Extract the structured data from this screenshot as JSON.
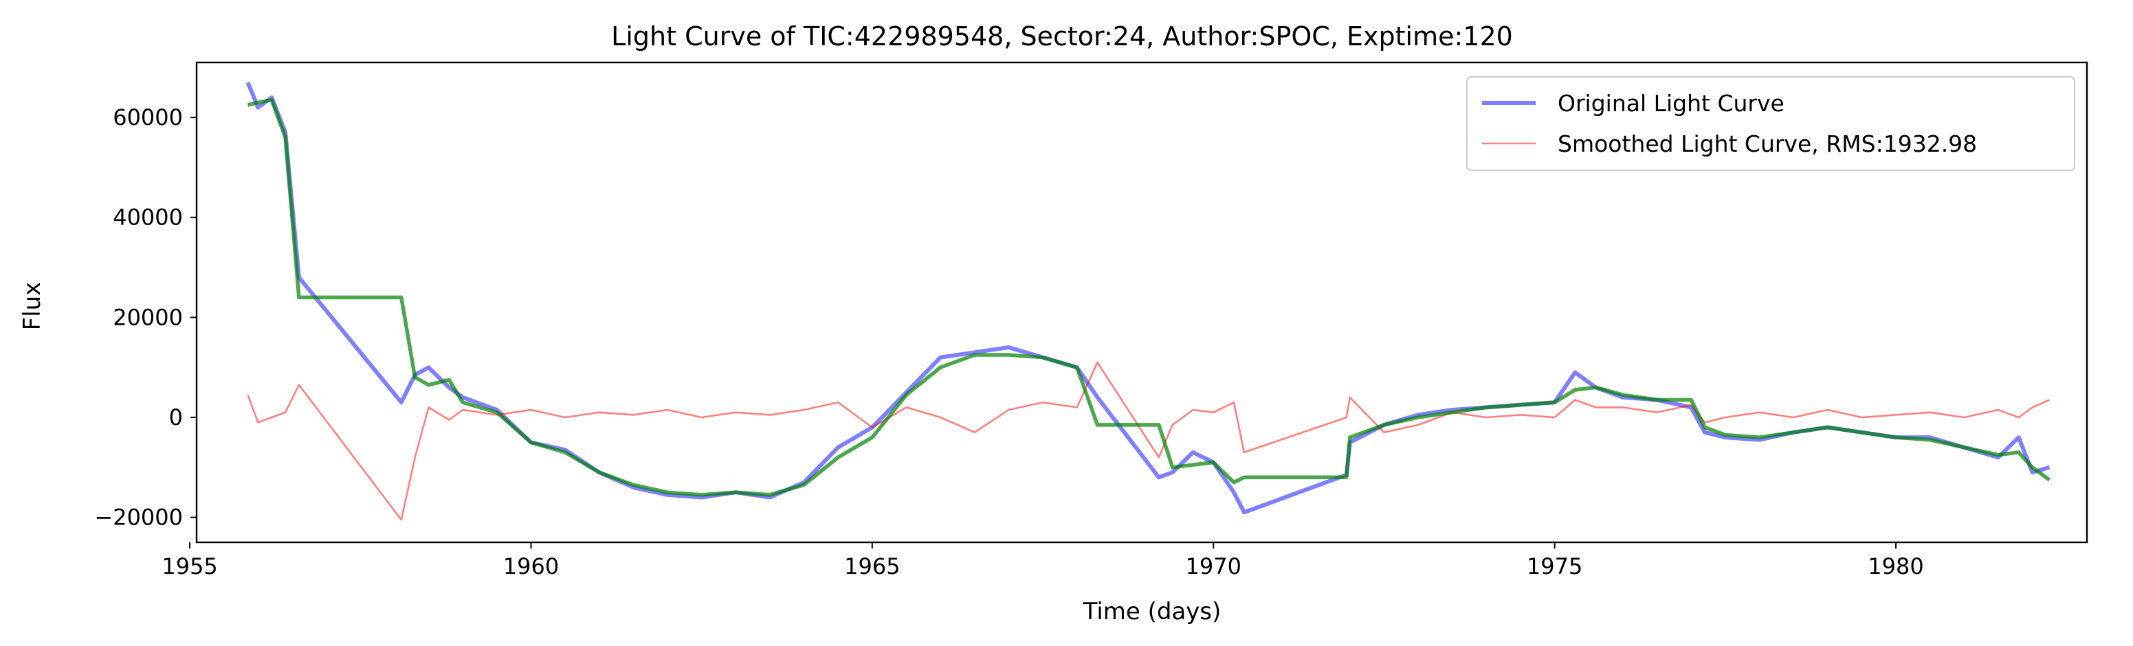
{
  "chart_data": {
    "type": "line",
    "title": "Light Curve of TIC:422989548, Sector:24, Author:SPOC, Exptime:120",
    "xlabel": "Time (days)",
    "ylabel": "Flux",
    "xlim": [
      1955.1,
      1982.8
    ],
    "ylim": [
      -25000,
      71000
    ],
    "xticks": [
      1955,
      1960,
      1965,
      1970,
      1975,
      1980
    ],
    "yticks": [
      -20000,
      0,
      20000,
      40000,
      60000
    ],
    "ytick_labels": [
      "−20000",
      "0",
      "20000",
      "40000",
      "60000"
    ],
    "grid": false,
    "legend_position": "top-right",
    "series": [
      {
        "name": "Original Light Curve",
        "color": "#0000ff",
        "opacity": 0.5,
        "x": [
          1955.85,
          1956.0,
          1956.2,
          1956.4,
          1956.6,
          1958.1,
          1958.3,
          1958.5,
          1958.8,
          1959.0,
          1959.5,
          1960.0,
          1960.5,
          1961.0,
          1961.5,
          1962.0,
          1962.5,
          1963.0,
          1963.5,
          1964.0,
          1964.5,
          1965.0,
          1965.5,
          1966.0,
          1966.5,
          1967.0,
          1967.5,
          1968.0,
          1968.3,
          1969.2,
          1969.4,
          1969.7,
          1970.0,
          1970.3,
          1970.45,
          1971.95,
          1972.0,
          1972.5,
          1973.0,
          1973.5,
          1974.0,
          1974.5,
          1975.0,
          1975.3,
          1975.6,
          1976.0,
          1976.5,
          1977.0,
          1977.2,
          1977.5,
          1978.0,
          1978.5,
          1979.0,
          1979.5,
          1980.0,
          1980.5,
          1981.0,
          1981.5,
          1981.8,
          1982.0,
          1982.25
        ],
        "y": [
          67000,
          62000,
          64000,
          57000,
          28000,
          3000,
          8500,
          10000,
          6000,
          4000,
          1500,
          -5000,
          -6500,
          -11000,
          -14000,
          -15500,
          -16000,
          -15000,
          -16000,
          -13000,
          -6000,
          -2000,
          5000,
          12000,
          13000,
          14000,
          12000,
          10000,
          4000,
          -12000,
          -11000,
          -7000,
          -9000,
          -15000,
          -19000,
          -11500,
          -5000,
          -1500,
          500,
          1500,
          2000,
          2500,
          3000,
          9000,
          6000,
          4000,
          3500,
          2000,
          -3000,
          -4000,
          -4500,
          -3000,
          -2000,
          -3000,
          -4000,
          -4000,
          -6000,
          -8000,
          -4000,
          -11000,
          -10000
        ]
      },
      {
        "name": "Smoothed Light Curve, RMS:1932.98",
        "color": "#ff0000",
        "opacity": 0.5,
        "x": [
          1955.85,
          1956.0,
          1956.2,
          1956.4,
          1956.6,
          1958.1,
          1958.3,
          1958.5,
          1958.8,
          1959.0,
          1959.5,
          1960.0,
          1960.5,
          1961.0,
          1961.5,
          1962.0,
          1962.5,
          1963.0,
          1963.5,
          1964.0,
          1964.5,
          1965.0,
          1965.5,
          1966.0,
          1966.5,
          1967.0,
          1967.5,
          1968.0,
          1968.3,
          1969.2,
          1969.4,
          1969.7,
          1970.0,
          1970.3,
          1970.45,
          1971.95,
          1972.0,
          1972.5,
          1973.0,
          1973.5,
          1974.0,
          1974.5,
          1975.0,
          1975.3,
          1975.6,
          1976.0,
          1976.5,
          1977.0,
          1977.2,
          1977.5,
          1978.0,
          1978.5,
          1979.0,
          1979.5,
          1980.0,
          1980.5,
          1981.0,
          1981.5,
          1981.8,
          1982.0,
          1982.25
        ],
        "y": [
          4500,
          -1000,
          0,
          1000,
          6500,
          -20500,
          -8000,
          2000,
          -500,
          1500,
          500,
          1500,
          0,
          1000,
          500,
          1500,
          0,
          1000,
          500,
          1500,
          3000,
          -2000,
          2000,
          0,
          -3000,
          1500,
          3000,
          2000,
          11000,
          -8000,
          -1500,
          1500,
          1000,
          3000,
          -7000,
          0,
          4000,
          -3000,
          -1500,
          1000,
          0,
          500,
          0,
          3500,
          2000,
          2000,
          1000,
          2500,
          -1000,
          0,
          1000,
          0,
          1500,
          0,
          500,
          1000,
          0,
          1500,
          0,
          2000,
          3500
        ]
      },
      {
        "name": "",
        "color": "#008000",
        "opacity": 0.7,
        "x": [
          1955.85,
          1956.0,
          1956.2,
          1956.4,
          1956.6,
          1958.1,
          1958.3,
          1958.5,
          1958.8,
          1959.0,
          1959.5,
          1960.0,
          1960.5,
          1961.0,
          1961.5,
          1962.0,
          1962.5,
          1963.0,
          1963.5,
          1964.0,
          1964.5,
          1965.0,
          1965.5,
          1966.0,
          1966.5,
          1967.0,
          1967.5,
          1968.0,
          1968.3,
          1969.2,
          1969.4,
          1969.7,
          1970.0,
          1970.3,
          1970.45,
          1971.95,
          1972.0,
          1972.5,
          1973.0,
          1973.5,
          1974.0,
          1974.5,
          1975.0,
          1975.3,
          1975.6,
          1976.0,
          1976.5,
          1977.0,
          1977.2,
          1977.5,
          1978.0,
          1978.5,
          1979.0,
          1979.5,
          1980.0,
          1980.5,
          1981.0,
          1981.5,
          1981.8,
          1982.0,
          1982.25
        ],
        "y": [
          62500,
          63000,
          63500,
          56000,
          24000,
          24000,
          8000,
          6500,
          7500,
          3000,
          1000,
          -5000,
          -7000,
          -11000,
          -13500,
          -15000,
          -15500,
          -15000,
          -15500,
          -13500,
          -8000,
          -4000,
          4500,
          10000,
          12500,
          12500,
          12000,
          10000,
          -1500,
          -1500,
          -10000,
          -9500,
          -9000,
          -13000,
          -12000,
          -12000,
          -4000,
          -1500,
          0,
          1000,
          2000,
          2500,
          3000,
          5500,
          6000,
          4500,
          3500,
          3500,
          -2000,
          -3500,
          -4000,
          -3000,
          -2000,
          -3000,
          -4000,
          -4500,
          -6000,
          -7500,
          -7000,
          -10000,
          -12500
        ]
      }
    ]
  }
}
